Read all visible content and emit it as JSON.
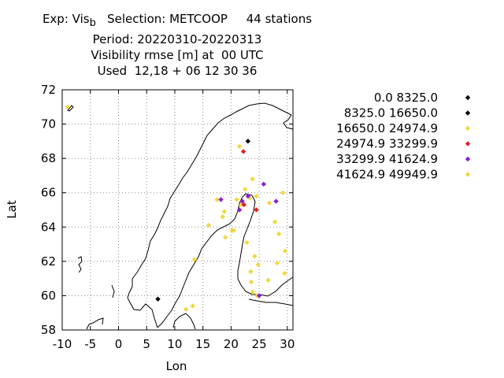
{
  "title": {
    "line1_prefix": "Exp: Vis",
    "line1_sub": "b",
    "line1_rest": "   Selection: METCOOP     44 stations",
    "line2": "Period: 20220310-20220313",
    "line3": "Visibility rmse [m] at  00 UTC",
    "line4": "Used  12,18 + 06 12 30 36"
  },
  "chart_data": {
    "type": "scatter",
    "xlabel": "Lon",
    "ylabel": "Lat",
    "xlim": [
      -10,
      31
    ],
    "ylim": [
      58,
      72
    ],
    "xticks": [
      -10,
      -5,
      0,
      5,
      10,
      15,
      20,
      25,
      30
    ],
    "yticks": [
      58,
      60,
      62,
      64,
      66,
      68,
      70,
      72
    ],
    "grid": true,
    "legend_position": "right",
    "series": [
      {
        "name": "0.0 8325.0",
        "color": "#000000",
        "points": [
          [
            23.0,
            69.0
          ],
          [
            7.0,
            59.8
          ]
        ]
      },
      {
        "name": "8325.0 16650.0",
        "color": "#000000",
        "points": []
      },
      {
        "name": "16650.0 24974.9",
        "color": "#f0d840",
        "points": [
          [
            -9.0,
            71.0
          ],
          [
            21.5,
            68.7
          ],
          [
            17.5,
            65.6
          ],
          [
            18.8,
            64.9
          ],
          [
            18.5,
            64.6
          ],
          [
            19.0,
            63.4
          ],
          [
            20.2,
            63.8
          ],
          [
            20.5,
            63.8
          ],
          [
            21.0,
            65.6
          ],
          [
            21.8,
            65.3
          ],
          [
            22.5,
            66.2
          ],
          [
            23.3,
            65.7
          ],
          [
            23.8,
            66.8
          ],
          [
            24.5,
            65.8
          ],
          [
            22.8,
            63.1
          ],
          [
            24.2,
            62.3
          ],
          [
            24.8,
            61.8
          ],
          [
            23.5,
            61.4
          ],
          [
            23.6,
            60.8
          ],
          [
            23.8,
            60.2
          ],
          [
            24.6,
            60.0
          ],
          [
            26.6,
            60.9
          ],
          [
            28.2,
            61.9
          ],
          [
            28.5,
            63.6
          ],
          [
            27.8,
            64.3
          ],
          [
            26.8,
            65.4
          ],
          [
            29.2,
            66.0
          ],
          [
            29.6,
            62.6
          ],
          [
            29.5,
            61.3
          ],
          [
            16.0,
            64.1
          ],
          [
            13.5,
            62.1
          ],
          [
            13.2,
            59.4
          ],
          [
            12.0,
            59.2
          ]
        ]
      },
      {
        "name": "24974.9 33299.9",
        "color": "#e02020",
        "points": [
          [
            22.2,
            68.4
          ],
          [
            22.3,
            65.3
          ],
          [
            24.5,
            65.0
          ]
        ]
      },
      {
        "name": "33299.9 41624.9",
        "color": "#8a1fd8",
        "points": [
          [
            25.8,
            66.5
          ],
          [
            21.5,
            65.0
          ],
          [
            18.2,
            65.6
          ],
          [
            22.0,
            65.5
          ],
          [
            23.0,
            65.8
          ],
          [
            28.0,
            65.5
          ],
          [
            25.0,
            60.0
          ]
        ]
      },
      {
        "name": "41624.9 49949.9",
        "color": "#f0d840",
        "points": []
      }
    ]
  }
}
